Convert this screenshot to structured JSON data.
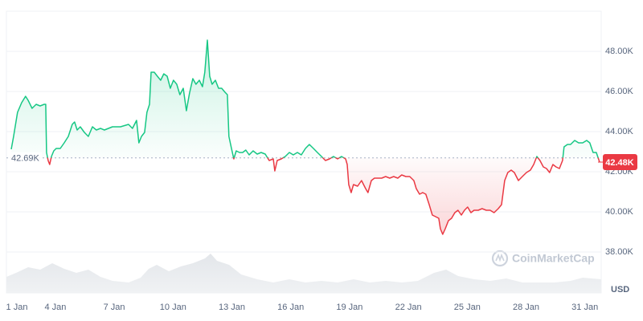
{
  "chart_data": {
    "type": "line",
    "y_axis_label": "USD",
    "watermark": "CoinMarketCap",
    "up_color": "#16c784",
    "down_color": "#ea3943",
    "grid": true,
    "baseline": {
      "value": 42690,
      "label": "42.69K"
    },
    "last_price": {
      "value": 42480,
      "label": "42.48K"
    },
    "xlim": [
      1.75,
      31.75
    ],
    "xticks": [
      {
        "value": 1,
        "label": "1 Jan"
      },
      {
        "value": 4,
        "label": "4 Jan"
      },
      {
        "value": 7,
        "label": "7 Jan"
      },
      {
        "value": 10,
        "label": "10 Jan"
      },
      {
        "value": 13,
        "label": "13 Jan"
      },
      {
        "value": 16,
        "label": "16 Jan"
      },
      {
        "value": 19,
        "label": "19 Jan"
      },
      {
        "value": 22,
        "label": "22 Jan"
      },
      {
        "value": 25,
        "label": "25 Jan"
      },
      {
        "value": 28,
        "label": "28 Jan"
      },
      {
        "value": 31,
        "label": "31 Jan"
      }
    ],
    "ylim": [
      36000,
      50000
    ],
    "yticks": [
      {
        "value": 38000,
        "label": "38.00K"
      },
      {
        "value": 40000,
        "label": "40.00K"
      },
      {
        "value": 42000,
        "label": "42.00K"
      },
      {
        "value": 44000,
        "label": "44.00K"
      },
      {
        "value": 46000,
        "label": "46.00K"
      },
      {
        "value": 48000,
        "label": "48.00K"
      }
    ],
    "x": [
      1.75,
      1.87,
      2.07,
      2.28,
      2.48,
      2.61,
      2.81,
      3.02,
      3.22,
      3.43,
      3.51,
      3.55,
      3.63,
      3.71,
      3.8,
      3.92,
      4.04,
      4.25,
      4.45,
      4.66,
      4.86,
      4.98,
      5.11,
      5.27,
      5.48,
      5.68,
      5.89,
      6.09,
      6.3,
      6.5,
      6.91,
      7.32,
      7.73,
      7.93,
      8.14,
      8.26,
      8.39,
      8.55,
      8.67,
      8.8,
      8.88,
      9.04,
      9.2,
      9.37,
      9.53,
      9.7,
      9.86,
      10.02,
      10.19,
      10.35,
      10.52,
      10.68,
      10.84,
      11.01,
      11.17,
      11.34,
      11.5,
      11.62,
      11.75,
      11.87,
      11.99,
      12.16,
      12.32,
      12.48,
      12.65,
      12.77,
      12.85,
      12.98,
      13.1,
      13.22,
      13.39,
      13.55,
      13.71,
      13.88,
      14.08,
      14.29,
      14.49,
      14.7,
      14.9,
      15.11,
      15.19,
      15.31,
      15.52,
      15.72,
      15.93,
      16.13,
      16.34,
      16.54,
      16.75,
      16.95,
      17.16,
      17.36,
      17.57,
      17.77,
      17.98,
      18.18,
      18.39,
      18.59,
      18.8,
      18.88,
      18.96,
      19.08,
      19.2,
      19.41,
      19.61,
      19.82,
      19.94,
      20.11,
      20.27,
      20.43,
      20.64,
      20.84,
      21.05,
      21.25,
      21.46,
      21.66,
      21.87,
      22.07,
      22.28,
      22.4,
      22.57,
      22.73,
      22.89,
      23.06,
      23.22,
      23.39,
      23.55,
      23.63,
      23.75,
      23.88,
      24.04,
      24.2,
      24.37,
      24.53,
      24.7,
      24.86,
      25.02,
      25.19,
      25.35,
      25.56,
      25.76,
      25.97,
      26.17,
      26.37,
      26.58,
      26.75,
      26.91,
      27.07,
      27.24,
      27.4,
      27.61,
      27.81,
      28.02,
      28.22,
      28.39,
      28.55,
      28.71,
      28.88,
      29.04,
      29.2,
      29.37,
      29.53,
      29.7,
      29.86,
      29.94,
      30.11,
      30.27,
      30.48,
      30.68,
      30.89,
      31.09,
      31.25,
      31.42,
      31.58,
      31.75
    ],
    "values": [
      43120,
      43760,
      44960,
      45440,
      45760,
      45560,
      45160,
      45360,
      45280,
      45360,
      45360,
      42960,
      42560,
      42360,
      42760,
      43040,
      43160,
      43160,
      43440,
      43760,
      44360,
      44480,
      44080,
      44240,
      43960,
      43760,
      44240,
      44080,
      44160,
      44080,
      44240,
      44240,
      44360,
      44160,
      44560,
      43440,
      43760,
      43960,
      44960,
      45360,
      46960,
      46960,
      46760,
      46560,
      46880,
      46760,
      46160,
      46560,
      46360,
      45840,
      46160,
      45040,
      45920,
      46640,
      46360,
      46560,
      46240,
      46960,
      48560,
      46760,
      46360,
      46560,
      46160,
      46160,
      45960,
      45840,
      43760,
      43160,
      42640,
      43040,
      42960,
      42960,
      43080,
      42840,
      43040,
      42880,
      42960,
      42880,
      42560,
      42640,
      42040,
      42560,
      42640,
      42760,
      42960,
      42840,
      42960,
      42840,
      43160,
      43360,
      43160,
      42960,
      42760,
      42560,
      42640,
      42760,
      42640,
      42760,
      42640,
      42360,
      41360,
      40960,
      41360,
      41280,
      41560,
      41160,
      40960,
      41560,
      41680,
      41680,
      41680,
      41760,
      41680,
      41760,
      41680,
      41840,
      41760,
      41760,
      41560,
      41160,
      40880,
      40960,
      40880,
      40360,
      39840,
      39760,
      39680,
      39160,
      38880,
      39160,
      39560,
      39680,
      39960,
      40080,
      39840,
      40080,
      40240,
      39960,
      40080,
      40080,
      40160,
      40080,
      40080,
      39960,
      40160,
      40360,
      41560,
      41960,
      42080,
      41960,
      41560,
      41760,
      41960,
      42080,
      42360,
      42760,
      42560,
      42240,
      42160,
      41960,
      42360,
      42240,
      42160,
      42560,
      43240,
      43360,
      43360,
      43560,
      43440,
      43440,
      43560,
      43440,
      42960,
      42960,
      42480
    ]
  }
}
